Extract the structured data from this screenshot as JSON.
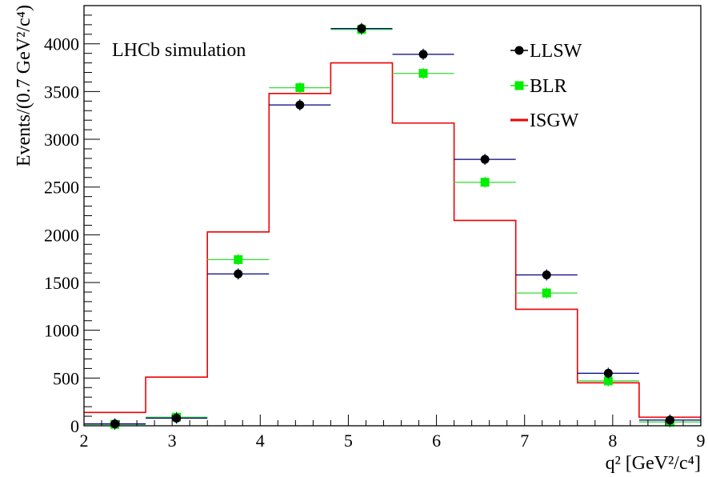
{
  "chart_data": {
    "type": "scatter",
    "annotation": "LHCb simulation",
    "ylabel": "Events/(0.7 GeV²/c⁴)",
    "xlabel": "q² [GeV²/c⁴]",
    "xlim": [
      2,
      9
    ],
    "ylim": [
      0,
      4400
    ],
    "x_ticks": [
      2,
      3,
      4,
      5,
      6,
      7,
      8,
      9
    ],
    "y_ticks": [
      0,
      500,
      1000,
      1500,
      2000,
      2500,
      3000,
      3500,
      4000
    ],
    "bin_edges": [
      2.0,
      2.7,
      3.4,
      4.1,
      4.8,
      5.5,
      6.2,
      6.9,
      7.6,
      8.3,
      9.0
    ],
    "grid": false,
    "legend_position": "top-right",
    "series": [
      {
        "name": "LLSW",
        "kind": "points",
        "marker": "circle",
        "color": "#000000",
        "bar_color": "#00007f",
        "x": [
          2.35,
          3.05,
          3.75,
          4.45,
          5.15,
          5.85,
          6.55,
          7.25,
          7.95,
          8.65
        ],
        "values": [
          20,
          80,
          1590,
          3360,
          4160,
          3890,
          2790,
          1580,
          550,
          60
        ]
      },
      {
        "name": "BLR",
        "kind": "points",
        "marker": "square",
        "color": "#00ee00",
        "bar_color": "#33dd33",
        "x": [
          2.35,
          3.05,
          3.75,
          4.45,
          5.15,
          5.85,
          6.55,
          7.25,
          7.95,
          8.65
        ],
        "values": [
          15,
          90,
          1740,
          3540,
          4150,
          3690,
          2550,
          1390,
          470,
          40
        ]
      },
      {
        "name": "ISGW",
        "kind": "histogram",
        "color": "#ee0000",
        "values": [
          140,
          510,
          2030,
          3480,
          3800,
          3170,
          2150,
          1220,
          450,
          90
        ]
      }
    ]
  }
}
